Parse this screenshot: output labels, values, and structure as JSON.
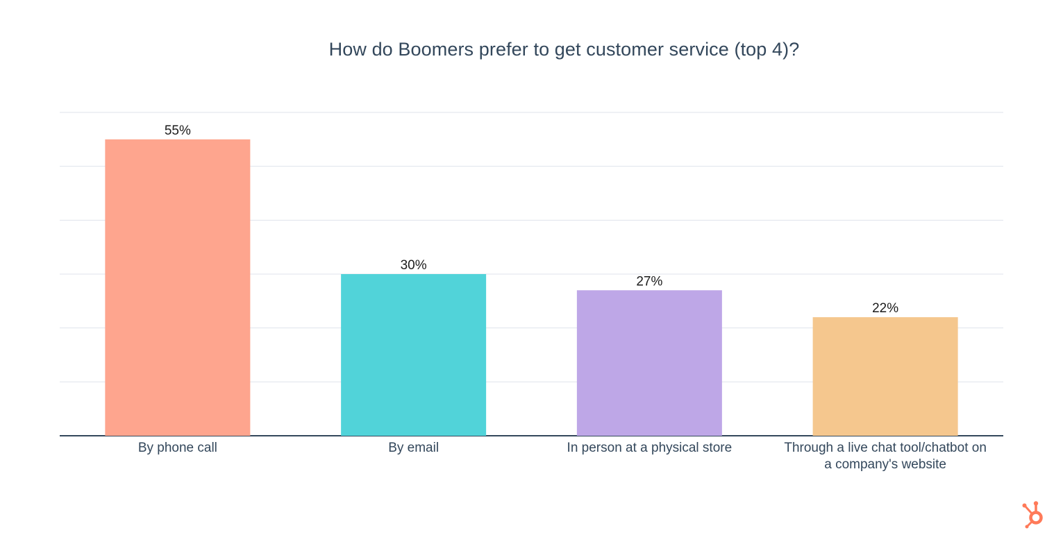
{
  "chart_data": {
    "type": "bar",
    "title": "How do Boomers prefer to get customer service (top 4)?",
    "categories": [
      [
        "By phone call"
      ],
      [
        "By email"
      ],
      [
        "In person at a physical store"
      ],
      [
        "Through a live chat tool/chatbot on",
        "a company's website"
      ]
    ],
    "values": [
      55,
      30,
      27,
      22
    ],
    "value_labels": [
      "55%",
      "30%",
      "27%",
      "22%"
    ],
    "ylim": [
      0,
      60
    ],
    "grid": true,
    "bar_colors": [
      "#fea58e",
      "#51d3d9",
      "#bea7e7",
      "#f5c78e"
    ]
  },
  "logo": {
    "icon": "hubspot-sprocket-icon",
    "color": "#ff7a59"
  }
}
